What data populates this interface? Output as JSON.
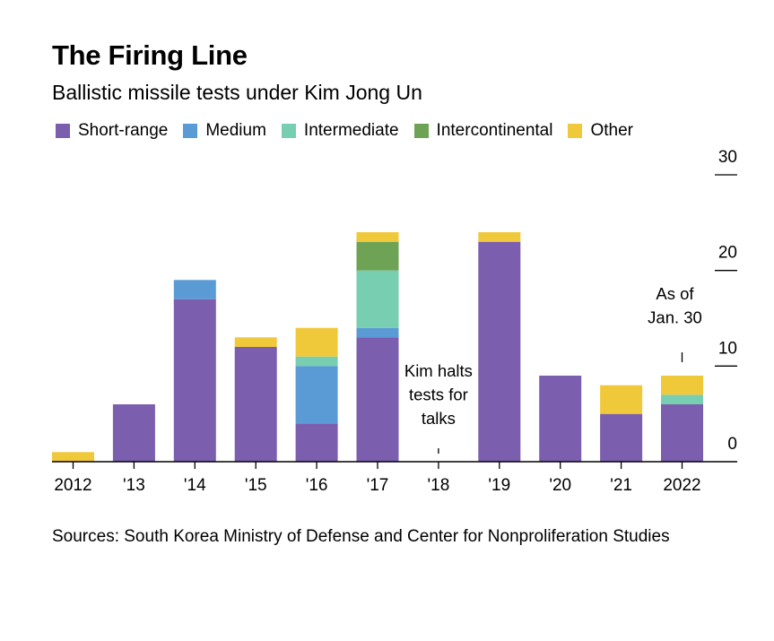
{
  "header": {
    "title": "The Firing Line",
    "subtitle": "Ballistic missile tests under Kim Jong Un"
  },
  "legend": [
    {
      "label": "Short-range",
      "color": "#7B5EAE"
    },
    {
      "label": "Medium",
      "color": "#5B9BD5"
    },
    {
      "label": "Intermediate",
      "color": "#78CEB1"
    },
    {
      "label": "Intercontinental",
      "color": "#6EA356"
    },
    {
      "label": "Other",
      "color": "#F0C93A"
    }
  ],
  "chart_data": {
    "type": "bar",
    "stacked": true,
    "title": "The Firing Line",
    "subtitle": "Ballistic missile tests under Kim Jong Un",
    "xlabel": "",
    "ylabel": "",
    "categories": [
      "2012",
      "'13",
      "'14",
      "'15",
      "'16",
      "'17",
      "'18",
      "'19",
      "'20",
      "'21",
      "2022"
    ],
    "series": [
      {
        "name": "Short-range",
        "color": "#7B5EAE",
        "values": [
          0,
          6,
          17,
          12,
          4,
          13,
          0,
          23,
          9,
          5,
          6
        ]
      },
      {
        "name": "Medium",
        "color": "#5B9BD5",
        "values": [
          0,
          0,
          2,
          0,
          6,
          1,
          0,
          0,
          0,
          0,
          0
        ]
      },
      {
        "name": "Intermediate",
        "color": "#78CEB1",
        "values": [
          0,
          0,
          0,
          0,
          1,
          6,
          0,
          0,
          0,
          0,
          1
        ]
      },
      {
        "name": "Intercontinental",
        "color": "#6EA356",
        "values": [
          0,
          0,
          0,
          0,
          0,
          3,
          0,
          0,
          0,
          0,
          0
        ]
      },
      {
        "name": "Other",
        "color": "#F0C93A",
        "values": [
          1,
          0,
          0,
          1,
          3,
          1,
          0,
          1,
          0,
          3,
          2
        ]
      }
    ],
    "ylim": [
      0,
      30
    ],
    "yticks": [
      0,
      10,
      20,
      30
    ],
    "ytick_labels": [
      "0",
      "10",
      "20",
      "30"
    ],
    "y_axis_side": "right",
    "grid": false,
    "legend_position": "top-left",
    "annotations": [
      {
        "category": "'18",
        "lines": [
          "Kim halts",
          "tests for",
          "talks"
        ]
      },
      {
        "category": "2022",
        "lines": [
          "As of",
          "Jan. 30"
        ]
      }
    ]
  },
  "footer": {
    "sources": "Sources: South Korea Ministry of Defense and Center for Nonproliferation Studies"
  }
}
